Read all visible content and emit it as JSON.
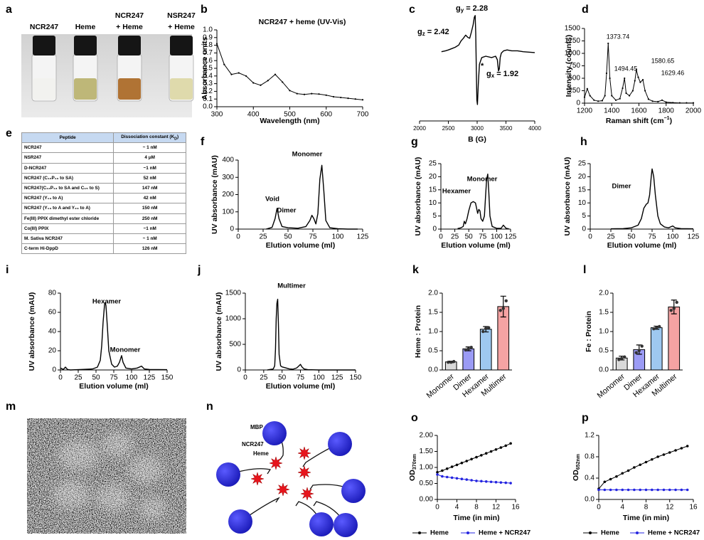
{
  "photo": {
    "label": "a",
    "labels": [
      [
        "NCR247"
      ],
      [
        "Heme"
      ],
      [
        "NCR247",
        "+ Heme"
      ],
      [
        "NSR247",
        "+ Heme"
      ]
    ]
  },
  "table": {
    "label": "e",
    "header": [
      "Peptide",
      [
        "Dissociation constant (K",
        "D",
        ")"
      ]
    ],
    "rows": [
      [
        "NCR247",
        "~ 1 nM"
      ],
      [
        "NSR247",
        "4 μM"
      ],
      [
        "D-NCR247",
        "~1 nM"
      ],
      [
        "NCR247 (C₁₂P₁₃ to SA)",
        "52 nM"
      ],
      [
        "NCR247(C₁₂P₁₃ to SA and C₁₅ to S)",
        "147 nM"
      ],
      [
        "NCR247 (Y₁₃ to A)",
        "42 nM"
      ],
      [
        "NCR247 (Y₁₃ to A and Y₂₃ to A)",
        "150 nM"
      ],
      [
        "Fe(III) PPIX dimethyl ester chloride",
        "250 nM"
      ],
      [
        "Co(III) PPIX",
        "~1 nM"
      ],
      [
        "M. Sativa NCR247",
        "~ 1 nM"
      ],
      [
        "C-term Hi-DppD",
        "126 nM"
      ]
    ]
  },
  "micrograph": {
    "label": "m"
  },
  "diagram": {
    "label": "n",
    "labels": [
      "MBP",
      "NCR247",
      "Heme"
    ]
  },
  "chart_data": [
    {
      "panel": "b",
      "type": "line",
      "title": "NCR247 + heme (UV-Vis)",
      "xlabel": "Wavelength (nm)",
      "ylabel": "Absorbance units",
      "markers": true,
      "color": "#000000",
      "x": [
        300,
        320,
        340,
        360,
        380,
        400,
        420,
        440,
        460,
        480,
        500,
        520,
        540,
        560,
        580,
        600,
        620,
        640,
        660,
        680,
        700
      ],
      "values": [
        0.82,
        0.55,
        0.42,
        0.44,
        0.4,
        0.31,
        0.28,
        0.34,
        0.42,
        0.32,
        0.21,
        0.17,
        0.16,
        0.17,
        0.165,
        0.15,
        0.13,
        0.12,
        0.11,
        0.1,
        0.09
      ],
      "xlim": [
        300,
        700
      ],
      "xticks": [
        300,
        400,
        500,
        600,
        700
      ],
      "ylim": [
        0,
        1
      ],
      "yticks": [
        {
          "value": 0,
          "label": "0.0"
        },
        0.1,
        0.2,
        0.3,
        0.4,
        0.5,
        0.6,
        0.7,
        0.8,
        0.9,
        {
          "value": 1,
          "label": "1.0"
        }
      ]
    },
    {
      "panel": "c",
      "type": "line",
      "xlabel": "B (G)",
      "color": "#000000",
      "x": [
        2380,
        2450,
        2500,
        2560,
        2620,
        2680,
        2720,
        2760,
        2800,
        2840,
        2870,
        2900,
        2930,
        2950,
        2965,
        2975,
        2985,
        2995,
        3005,
        3020,
        3040,
        3080,
        3150,
        3250,
        3320,
        3350,
        3370,
        3385,
        3400,
        3420,
        3460,
        3520,
        3600,
        3700,
        3800,
        3900,
        4000
      ],
      "values": [
        0.18,
        0.2,
        0.22,
        0.25,
        0.28,
        0.33,
        0.42,
        0.48,
        0.55,
        0.5,
        0.48,
        0.62,
        0.78,
        0.95,
        0.99,
        0.6,
        -0.2,
        -0.9,
        -1,
        -0.55,
        -0.1,
        0.05,
        0.08,
        0.05,
        0.08,
        0,
        -0.25,
        -0.2,
        0.05,
        0.15,
        0.2,
        0.22,
        0.2,
        0.2,
        0.18,
        0.17,
        0.16
      ],
      "xlim": [
        2000,
        4000
      ],
      "xticks": [
        2000,
        2500,
        3000,
        3500,
        4000
      ],
      "ylim": [
        -1.05,
        1.05
      ],
      "annotations": [
        {
          "symbol": "g",
          "sub": "z",
          "text": "= 2.42"
        },
        {
          "symbol": "g",
          "sub": "y",
          "text": "= 2.28"
        },
        {
          "text": "*"
        },
        {
          "symbol": "g",
          "sub": "x",
          "text": "= 1.92"
        }
      ]
    },
    {
      "panel": "d",
      "type": "line",
      "xlabel": "Raman shift (cm",
      "xlabel_sup": "−1",
      "xlabel_tail": ")",
      "ylabel": "Intensity (counts)",
      "markers": true,
      "color": "#000000",
      "x": [
        1200,
        1220,
        1240,
        1270,
        1300,
        1330,
        1350,
        1362,
        1374,
        1386,
        1400,
        1430,
        1460,
        1480,
        1494,
        1506,
        1530,
        1555,
        1570,
        1581,
        1595,
        1610,
        1629,
        1645,
        1670,
        1700,
        1740,
        1770,
        1800,
        1850,
        1900,
        1950,
        2000
      ],
      "values": [
        120,
        290,
        150,
        60,
        40,
        50,
        150,
        600,
        1200,
        500,
        150,
        60,
        90,
        300,
        500,
        200,
        150,
        250,
        450,
        670,
        520,
        420,
        470,
        250,
        80,
        40,
        30,
        60,
        20,
        10,
        5,
        5,
        5
      ],
      "xlim": [
        1200,
        2000
      ],
      "xticks": [
        1200,
        1400,
        1600,
        1800,
        2000
      ],
      "ylim": [
        0,
        1500
      ],
      "yticks": [
        0,
        250,
        500,
        750,
        1000,
        1250,
        1500
      ],
      "peaks": [
        1373.74,
        1494.45,
        1580.65,
        1629.46
      ]
    },
    {
      "panel": "f",
      "type": "line",
      "xlabel": "Elution volume (ml)",
      "ylabel": "UV absorbance (mAU)",
      "color": "#000000",
      "x": [
        28,
        34,
        37,
        39,
        41,
        44,
        50,
        60,
        68,
        72,
        74,
        76,
        78,
        80,
        82,
        84,
        86,
        88,
        92,
        100,
        110,
        120
      ],
      "values": [
        0,
        10,
        60,
        120,
        60,
        15,
        8,
        5,
        15,
        50,
        80,
        60,
        30,
        90,
        290,
        370,
        220,
        50,
        8,
        2,
        0,
        0
      ],
      "xlim": [
        0,
        125
      ],
      "xticks": [
        0,
        25,
        50,
        75,
        100,
        125
      ],
      "ylim": [
        0,
        400
      ],
      "yticks": [
        0,
        100,
        200,
        300,
        400
      ],
      "annotations": [
        "Void",
        "Dimer",
        "Monomer"
      ]
    },
    {
      "panel": "g",
      "type": "line",
      "xlabel": "Elution volume (ml)",
      "ylabel": "UV absorbance (mAU)",
      "color": "#000000",
      "x": [
        30,
        36,
        40,
        42,
        44,
        47,
        50,
        54,
        58,
        62,
        64,
        66,
        68,
        70,
        72,
        75,
        78,
        80,
        82,
        84,
        86,
        88,
        92,
        100,
        108,
        112,
        114,
        117,
        122
      ],
      "values": [
        0.2,
        0.5,
        1,
        3,
        2,
        4,
        7,
        10,
        10.5,
        10,
        8,
        6,
        7.5,
        7,
        4,
        3,
        5,
        12,
        19,
        21,
        14,
        5,
        1,
        0.3,
        0.3,
        1.5,
        1,
        0.3,
        0.1
      ],
      "xlim": [
        0,
        125
      ],
      "xticks": [
        0,
        25,
        50,
        75,
        100,
        125
      ],
      "ylim": [
        0,
        25
      ],
      "yticks": [
        0,
        5,
        10,
        15,
        20,
        25
      ],
      "annotations": [
        "Hexamer",
        "Monomer"
      ]
    },
    {
      "panel": "h",
      "type": "line",
      "xlabel": "Elution volume (ml)",
      "ylabel": "UV absorbance (mAU)",
      "color": "#000000",
      "x": [
        25,
        40,
        50,
        58,
        62,
        65,
        68,
        70,
        72,
        74,
        75,
        77,
        79,
        82,
        85,
        90,
        95,
        100,
        103,
        110,
        125
      ],
      "values": [
        0.1,
        0.2,
        0.5,
        1.5,
        4,
        8,
        9.5,
        10,
        13,
        20,
        23,
        20,
        13,
        5,
        2,
        0.8,
        0.5,
        1.2,
        0.5,
        0.2,
        0.1
      ],
      "xlim": [
        0,
        125
      ],
      "xticks": [
        0,
        25,
        50,
        75,
        100,
        125
      ],
      "ylim": [
        0,
        25
      ],
      "yticks": [
        0,
        5,
        10,
        15,
        20,
        25
      ],
      "annotations": [
        "Dimer"
      ]
    },
    {
      "panel": "i",
      "type": "line",
      "xlabel": "Elution volume (ml)",
      "ylabel": "UV absorbance (mAU)",
      "color": "#000000",
      "x": [
        0,
        4,
        7,
        10,
        14,
        30,
        45,
        52,
        56,
        58,
        60,
        62,
        63,
        64,
        66,
        68,
        72,
        76,
        80,
        83,
        86,
        88,
        92,
        100,
        108,
        114,
        118,
        125,
        150
      ],
      "values": [
        2,
        0.5,
        3,
        0.5,
        0,
        0.5,
        1,
        3,
        10,
        25,
        50,
        68,
        70,
        67,
        45,
        20,
        6,
        3,
        4,
        8,
        15,
        8,
        2,
        1,
        2,
        4,
        1,
        0.5,
        0.3
      ],
      "xlim": [
        0,
        150
      ],
      "xticks": [
        0,
        25,
        50,
        75,
        100,
        125,
        150
      ],
      "ylim": [
        0,
        80
      ],
      "yticks": [
        0,
        20,
        40,
        60,
        80
      ],
      "annotations": [
        "Hexamer",
        "Monomer"
      ]
    },
    {
      "panel": "j",
      "type": "line",
      "xlabel": "Elution volume (ml)",
      "ylabel": "UV absorbance (mAU)",
      "color": "#000000",
      "x": [
        30,
        38,
        40,
        41,
        42,
        43,
        44,
        45,
        46,
        48,
        50,
        55,
        60,
        65,
        70,
        73,
        75,
        77,
        80,
        85,
        100,
        120,
        150
      ],
      "values": [
        0,
        20,
        80,
        400,
        1000,
        1300,
        1380,
        900,
        300,
        80,
        60,
        40,
        20,
        15,
        40,
        80,
        110,
        60,
        20,
        5,
        0,
        0,
        0
      ],
      "xlim": [
        0,
        150
      ],
      "xticks": [
        0,
        25,
        50,
        75,
        100,
        125,
        150
      ],
      "ylim": [
        0,
        1500
      ],
      "yticks": [
        0,
        500,
        1000,
        1500
      ],
      "annotations": [
        "Multimer"
      ]
    },
    {
      "panel": "k",
      "type": "bar",
      "ylabel": "Heme : Protein",
      "categories": [
        "Monomer",
        "Dimer",
        "Hexamer",
        "Multimer"
      ],
      "values": [
        0.21,
        0.55,
        1.06,
        1.65
      ],
      "errors": [
        0.02,
        0.05,
        0.07,
        0.27
      ],
      "replicates": [
        [
          0.2,
          0.2,
          0.22
        ],
        [
          0.52,
          0.55,
          0.59
        ],
        [
          1,
          1.08,
          1.1
        ],
        [
          1.55,
          1.6,
          1.8
        ]
      ],
      "colors": [
        "#d9d9d9",
        "#9b9bf5",
        "#9ec8f0",
        "#f5a3a3"
      ],
      "ylim": [
        0,
        2
      ],
      "yticks": [
        {
          "value": 0,
          "label": "0.0"
        },
        0.5,
        {
          "value": 1,
          "label": "1.0"
        },
        1.5,
        {
          "value": 2,
          "label": "2.0"
        }
      ]
    },
    {
      "panel": "l",
      "type": "bar",
      "ylabel": "Fe : Protein",
      "categories": [
        "Monomer",
        "Dimer",
        "Hexamer",
        "Multimer"
      ],
      "values": [
        0.31,
        0.53,
        1.1,
        1.64
      ],
      "errors": [
        0.05,
        0.12,
        0.04,
        0.18
      ],
      "replicates": [
        [
          0.27,
          0.3,
          0.34
        ],
        [
          0.45,
          0.5,
          0.62
        ],
        [
          1.07,
          1.1,
          1.13
        ],
        [
          1.55,
          1.6,
          1.76
        ]
      ],
      "colors": [
        "#d9d9d9",
        "#9b9bf5",
        "#9ec8f0",
        "#f5a3a3"
      ],
      "ylim": [
        0,
        2
      ],
      "yticks": [
        {
          "value": 0,
          "label": "0.0"
        },
        0.5,
        {
          "value": 1,
          "label": "1.0"
        },
        1.5,
        {
          "value": 2,
          "label": "2.0"
        }
      ]
    },
    {
      "panel": "o",
      "type": "line",
      "xlabel": "Time (in min)",
      "ylabel": "OD",
      "ylabel_sub": "370nm",
      "markers": true,
      "x": [
        0,
        1,
        2,
        3,
        4,
        5,
        6,
        7,
        8,
        9,
        10,
        11,
        12,
        13,
        14,
        15
      ],
      "series": [
        {
          "name": "Heme",
          "color": "#000000",
          "values": [
            0.85,
            0.9,
            0.96,
            1.02,
            1.08,
            1.14,
            1.2,
            1.26,
            1.32,
            1.38,
            1.44,
            1.5,
            1.56,
            1.62,
            1.68,
            1.75
          ]
        },
        {
          "name": "Heme + NCR247",
          "color": "#2424e0",
          "values": [
            0.78,
            0.72,
            0.7,
            0.68,
            0.66,
            0.64,
            0.62,
            0.6,
            0.58,
            0.57,
            0.56,
            0.55,
            0.54,
            0.53,
            0.52,
            0.51
          ]
        }
      ],
      "xlim": [
        0,
        16
      ],
      "xticks": [
        0,
        4,
        8,
        12,
        16
      ],
      "ylim": [
        0,
        2
      ],
      "yticks": [
        {
          "value": 0,
          "label": "0.00"
        },
        {
          "value": 0.5,
          "label": "0.50"
        },
        {
          "value": 1,
          "label": "1.00"
        },
        {
          "value": 1.5,
          "label": "1.50"
        },
        {
          "value": 2,
          "label": "2.00"
        }
      ]
    },
    {
      "panel": "p",
      "type": "line",
      "xlabel": "Time (in min)",
      "ylabel": "OD",
      "ylabel_sub": "652nm",
      "markers": true,
      "x": [
        0,
        1,
        2,
        3,
        4,
        5,
        6,
        7,
        8,
        9,
        10,
        11,
        12,
        13,
        14,
        15
      ],
      "series": [
        {
          "name": "Heme",
          "color": "#000000",
          "values": [
            0.2,
            0.33,
            0.38,
            0.43,
            0.49,
            0.54,
            0.6,
            0.65,
            0.7,
            0.75,
            0.8,
            0.84,
            0.88,
            0.92,
            0.96,
            1
          ]
        },
        {
          "name": "Heme + NCR247",
          "color": "#2424e0",
          "values": [
            0.18,
            0.18,
            0.18,
            0.18,
            0.18,
            0.18,
            0.18,
            0.18,
            0.18,
            0.18,
            0.18,
            0.18,
            0.18,
            0.18,
            0.18,
            0.18
          ]
        }
      ],
      "xlim": [
        0,
        16
      ],
      "xticks": [
        0,
        4,
        8,
        12,
        16
      ],
      "ylim": [
        0,
        1.2
      ],
      "yticks": [
        {
          "value": 0,
          "label": "0.0"
        },
        0.4,
        0.8,
        {
          "value": 1.2,
          "label": "1.2"
        }
      ]
    }
  ]
}
